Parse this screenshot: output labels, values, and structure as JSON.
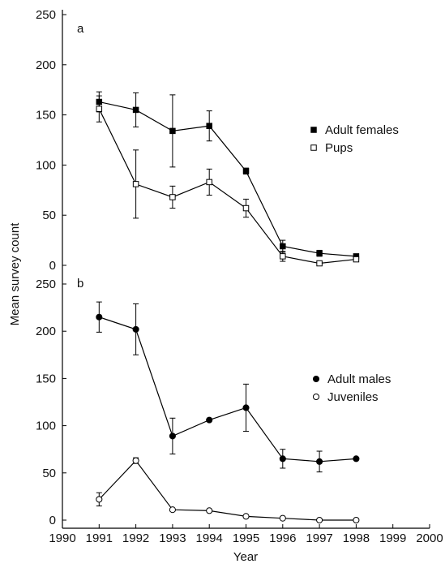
{
  "chart_data": [
    {
      "type": "line",
      "panel_label": "a",
      "x": [
        1991,
        1992,
        1993,
        1994,
        1995,
        1996,
        1997,
        1998
      ],
      "xlim": [
        1990,
        2000
      ],
      "ylim": [
        0,
        250
      ],
      "yticks": [
        0,
        50,
        100,
        150,
        200,
        250
      ],
      "legend_position": "right",
      "series": [
        {
          "name": "Adult females",
          "marker": "filled-square",
          "values": [
            163,
            155,
            134,
            139,
            94,
            19,
            12,
            9
          ],
          "errors": [
            10,
            17,
            36,
            15,
            3,
            6,
            3,
            2
          ]
        },
        {
          "name": "Pups",
          "marker": "open-square",
          "values": [
            156,
            81,
            68,
            83,
            57,
            9,
            2,
            6
          ],
          "errors": [
            13,
            34,
            11,
            13,
            9,
            5,
            1,
            2
          ]
        }
      ]
    },
    {
      "type": "line",
      "panel_label": "b",
      "x": [
        1991,
        1992,
        1993,
        1994,
        1995,
        1996,
        1997,
        1998
      ],
      "xlim": [
        1990,
        2000
      ],
      "ylim": [
        0,
        250
      ],
      "yticks": [
        0,
        50,
        100,
        150,
        200,
        250
      ],
      "legend_position": "right",
      "series": [
        {
          "name": "Adult males",
          "marker": "filled-circle",
          "values": [
            215,
            202,
            89,
            106,
            119,
            65,
            62,
            65
          ],
          "errors": [
            16,
            27,
            19,
            1,
            25,
            10,
            11,
            1
          ]
        },
        {
          "name": "Juveniles",
          "marker": "open-circle",
          "values": [
            22,
            63,
            11,
            10,
            4,
            2,
            0,
            0
          ],
          "errors": [
            7,
            3,
            1,
            1,
            1,
            0,
            0,
            0
          ]
        }
      ]
    }
  ],
  "axes": {
    "xlabel": "Year",
    "ylabel": "Mean survey count",
    "xticks": [
      1990,
      1991,
      1992,
      1993,
      1994,
      1995,
      1996,
      1997,
      1998,
      1999,
      2000
    ]
  }
}
